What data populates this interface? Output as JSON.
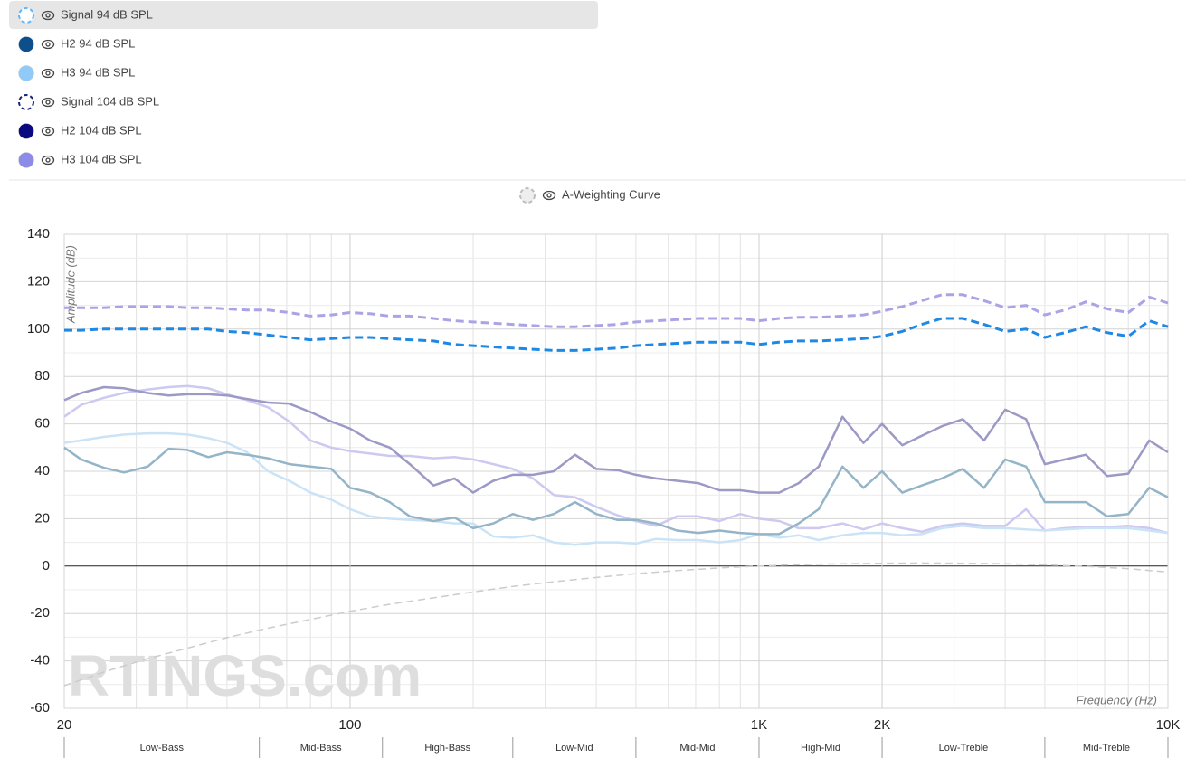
{
  "chart_data": {
    "type": "line",
    "x_label": "Frequency (Hz)",
    "y_label": "Amplitude (dB)",
    "watermark": "RTINGS.com",
    "log_x": true,
    "grid": true,
    "xlim": [
      20,
      10000
    ],
    "xticks": [
      {
        "value": 20,
        "label": "20"
      },
      {
        "value": 100,
        "label": "100"
      },
      {
        "value": 1000,
        "label": "1K"
      },
      {
        "value": 2000,
        "label": "2K"
      },
      {
        "value": 10000,
        "label": "10K"
      }
    ],
    "ylim": [
      -60,
      140
    ],
    "yticks": [
      -60,
      -40,
      -20,
      0,
      20,
      40,
      60,
      80,
      100,
      120,
      140
    ],
    "bands": {
      "labels": [
        "Low-Bass",
        "Mid-Bass",
        "High-Bass",
        "Low-Mid",
        "Mid-Mid",
        "High-Mid",
        "Low-Treble",
        "Mid-Treble"
      ],
      "edges": [
        20,
        60,
        120,
        250,
        500,
        1000,
        2000,
        5000,
        10000
      ]
    },
    "x": [
      20,
      22,
      25,
      28,
      32,
      36,
      40,
      45,
      50,
      56,
      63,
      71,
      80,
      90,
      100,
      112,
      125,
      140,
      160,
      180,
      200,
      224,
      250,
      280,
      315,
      355,
      400,
      450,
      500,
      560,
      630,
      710,
      800,
      900,
      1000,
      1120,
      1250,
      1400,
      1600,
      1800,
      2000,
      2240,
      2500,
      2800,
      3150,
      3550,
      4000,
      4500,
      5000,
      5600,
      6300,
      7100,
      8000,
      9000,
      10000
    ],
    "series": [
      {
        "name": "Signal 94 dB SPL",
        "color": "#64b5f6",
        "line_color": "#1e88e5",
        "dashed": true,
        "values": [
          99.5,
          99.5,
          100,
          100,
          100,
          100,
          100,
          100,
          99,
          98.5,
          97.5,
          96.5,
          95.5,
          96,
          96.5,
          96.5,
          96,
          95.5,
          95,
          93.5,
          93,
          92.5,
          92,
          91.5,
          91,
          91,
          91.5,
          92,
          93,
          93.5,
          94,
          94.5,
          94.5,
          94.5,
          93.5,
          94.5,
          95,
          95,
          95.5,
          96,
          97,
          99,
          102,
          104.5,
          104.5,
          102,
          99,
          100,
          96.5,
          98.5,
          101,
          98.5,
          97,
          103.5,
          101
        ]
      },
      {
        "name": "H2 94 dB SPL",
        "color": "#0d4f8b",
        "line_color": "#94b4c8",
        "dashed": false,
        "values": [
          50,
          45,
          41.5,
          39.5,
          42,
          49.5,
          49,
          46,
          48,
          47,
          45.5,
          43,
          42,
          41,
          33,
          31,
          27,
          21,
          19,
          20.5,
          16,
          18,
          22,
          19.5,
          22,
          27,
          22,
          19.5,
          19.5,
          18,
          15,
          14,
          15,
          14,
          13.5,
          13.5,
          18,
          24,
          42,
          33,
          40,
          31,
          34,
          37,
          41,
          33,
          45,
          42,
          27,
          27,
          27,
          21,
          22,
          33,
          29
        ]
      },
      {
        "name": "H3 94 dB SPL",
        "color": "#90caf9",
        "line_color": "#cbe3f6",
        "dashed": false,
        "values": [
          52,
          53,
          54.5,
          55.5,
          56,
          56,
          55.5,
          54,
          52,
          48,
          40,
          36,
          31,
          28,
          24,
          21,
          20,
          19.5,
          19,
          18,
          18,
          12.5,
          12,
          13,
          10,
          9,
          10,
          10,
          9.5,
          11.5,
          11,
          11,
          10,
          11,
          13.5,
          12,
          13,
          11,
          13,
          14,
          14,
          13,
          13.5,
          16,
          17,
          16,
          16,
          15.5,
          15,
          15.5,
          16,
          16,
          16,
          15,
          14
        ]
      },
      {
        "name": "Signal 104 dB SPL",
        "color": "#1a237e",
        "line_color": "#aaa4e6",
        "dashed": true,
        "values": [
          109,
          109,
          109,
          109.5,
          109.5,
          109.5,
          109,
          109,
          108.5,
          108,
          108,
          107,
          105.5,
          106,
          107,
          106.5,
          105.5,
          105.5,
          104.5,
          103.5,
          103,
          102.5,
          102,
          101.5,
          101,
          101,
          101.5,
          102,
          103,
          103.5,
          104,
          104.5,
          104.5,
          104.5,
          103.5,
          104.5,
          105,
          105,
          105.5,
          106,
          107.5,
          109.5,
          112,
          114.5,
          114.5,
          112,
          109,
          110,
          106,
          108,
          111.5,
          108.5,
          107,
          113.5,
          111
        ]
      },
      {
        "name": "H2 104 dB SPL",
        "color": "#0a0a80",
        "line_color": "#9c99c6",
        "dashed": false,
        "values": [
          70,
          73,
          75.5,
          75,
          73,
          72,
          72.5,
          72.5,
          72,
          70.5,
          69,
          68.5,
          65,
          61,
          58,
          53,
          50,
          43,
          34,
          37,
          31,
          36,
          38.5,
          38.5,
          40,
          47,
          41,
          40.5,
          38.5,
          37,
          36,
          35,
          32,
          32,
          31,
          31,
          35,
          42,
          63,
          52,
          60,
          51,
          55,
          59,
          62,
          53,
          66,
          62,
          43,
          45,
          47,
          38,
          39,
          53,
          48
        ]
      },
      {
        "name": "H3 104 dB SPL",
        "color": "#8c8ce8",
        "line_color": "#cdc9f0",
        "dashed": false,
        "values": [
          63,
          68,
          71,
          73,
          74.5,
          75.5,
          76,
          75,
          72.5,
          70,
          67,
          61,
          53,
          50,
          48.5,
          47.5,
          46.5,
          46.5,
          45.5,
          46,
          45,
          43,
          41,
          37,
          30,
          29,
          25,
          21.5,
          19,
          17,
          21,
          21,
          19,
          22,
          20,
          19,
          16,
          16,
          18,
          15.5,
          18,
          16,
          14.5,
          17,
          18,
          17,
          17,
          24,
          15,
          16,
          16.5,
          16.5,
          17,
          16,
          14
        ]
      },
      {
        "name": "A-Weighting Curve",
        "color": "#bdbdbd",
        "line_color": "#cccccc",
        "dashed": true,
        "x": [
          20,
          25,
          31.5,
          40,
          50,
          63,
          80,
          100,
          125,
          160,
          200,
          250,
          315,
          400,
          500,
          630,
          800,
          1000,
          1250,
          1600,
          2000,
          2500,
          3150,
          4000,
          5000,
          6300,
          8000,
          10000
        ],
        "values": [
          -50.5,
          -44.7,
          -39.4,
          -34.6,
          -30.2,
          -26.2,
          -22.5,
          -19.1,
          -16.1,
          -13.4,
          -10.9,
          -8.6,
          -6.6,
          -4.8,
          -3.2,
          -1.9,
          -0.8,
          0,
          0.6,
          1,
          1.2,
          1.3,
          1.2,
          1,
          0.5,
          -0.1,
          -1.1,
          -2.5
        ]
      }
    ]
  }
}
